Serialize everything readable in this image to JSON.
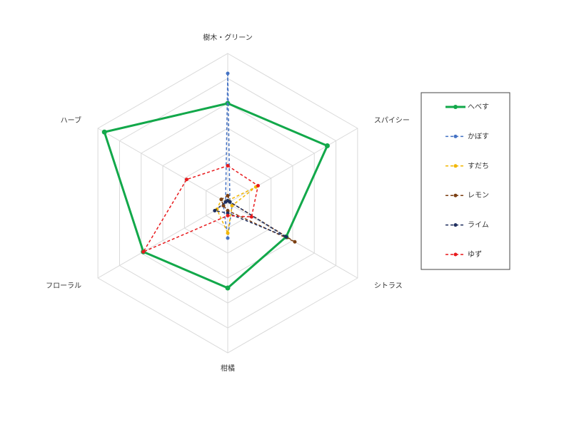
{
  "chart_data": {
    "type": "radar",
    "categories": [
      "樹木・グリーン",
      "スパイシー",
      "シトラス",
      "柑橘",
      "フローラル",
      "ハーブ"
    ],
    "rlim": [
      0,
      6
    ],
    "rticks": [
      1,
      2,
      3,
      4,
      5,
      6
    ],
    "grid": true,
    "legend": "right",
    "series": [
      {
        "name": "へべす",
        "color": "#12a84a",
        "dash": false,
        "values": [
          4,
          4.6,
          2.7,
          3.4,
          3.9,
          5.7
        ]
      },
      {
        "name": "かぼす",
        "color": "#4472c4",
        "dash": true,
        "values": [
          5.2,
          0.1,
          0.2,
          1.4,
          0.2,
          0.1
        ]
      },
      {
        "name": "すだち",
        "color": "#f2b705",
        "dash": true,
        "values": [
          0.1,
          1.3,
          0.2,
          1.2,
          0.5,
          0.3
        ]
      },
      {
        "name": "レモン",
        "color": "#7b3f12",
        "dash": true,
        "values": [
          0.3,
          0.1,
          3.1,
          0.3,
          0.2,
          0.3
        ]
      },
      {
        "name": "ライム",
        "color": "#1f2f5f",
        "dash": true,
        "values": [
          0.1,
          0.1,
          2.7,
          0.4,
          0.6,
          0.1
        ]
      },
      {
        "name": "ゆず",
        "color": "#e8191c",
        "dash": true,
        "values": [
          1.5,
          1.4,
          1.1,
          0.5,
          3.9,
          1.9
        ]
      }
    ]
  }
}
